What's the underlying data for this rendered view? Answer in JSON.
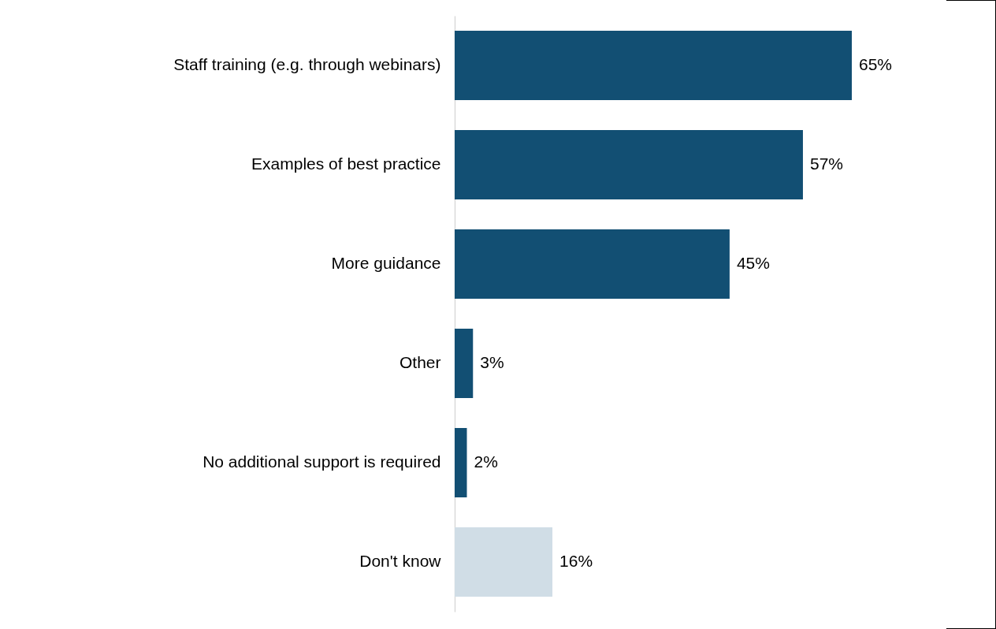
{
  "chart_data": {
    "type": "bar",
    "orientation": "horizontal",
    "categories": [
      "Staff training (e.g. through webinars)",
      "Examples of best practice",
      "More guidance",
      "Other",
      "No additional support is required",
      "Don't know"
    ],
    "values": [
      65,
      57,
      45,
      3,
      2,
      16
    ],
    "colors": [
      "#124f73",
      "#124f73",
      "#124f73",
      "#124f73",
      "#124f73",
      "#d0dde6"
    ],
    "value_labels": [
      "65%",
      "57%",
      "45%",
      "3%",
      "2%",
      "16%"
    ]
  }
}
